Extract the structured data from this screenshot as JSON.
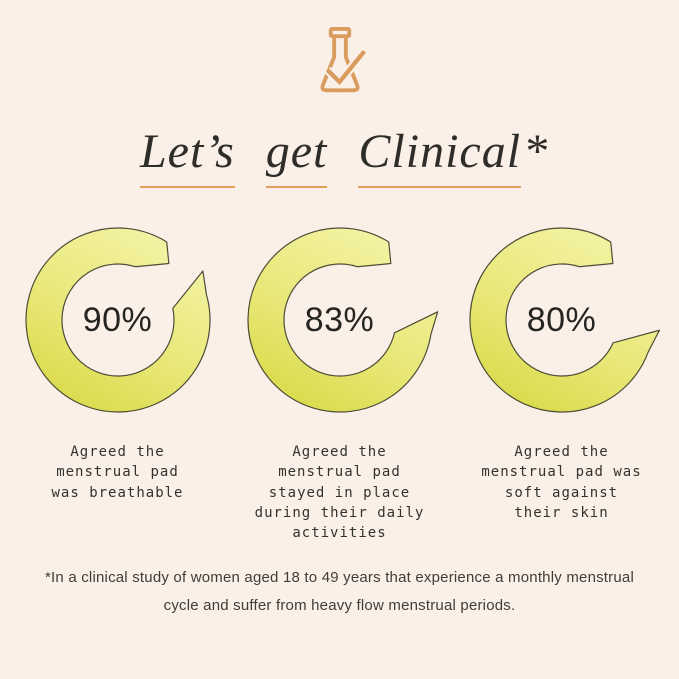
{
  "page": {
    "background_color": "#faf0e7",
    "accent_color": "#e2a05c",
    "text_color": "#2f2d2a"
  },
  "header": {
    "icon": "flask-check-icon",
    "title_words": [
      "Let’s",
      "get",
      "Clinical"
    ],
    "title_asterisk": "*"
  },
  "chart_data": {
    "type": "donut",
    "title": "Let’s get Clinical*",
    "legend": "none",
    "series": [
      {
        "value": 90,
        "label": "90%",
        "caption": "Agreed the menstrual pad was breathable",
        "caption_lines": [
          "Agreed the",
          "menstrual pad",
          "was breathable"
        ]
      },
      {
        "value": 83,
        "label": "83%",
        "caption": "Agreed the menstrual pad stayed in place during their daily activities",
        "caption_lines": [
          "Agreed the",
          "menstrual pad",
          "stayed in place",
          "during their daily",
          "activities"
        ]
      },
      {
        "value": 80,
        "label": "80%",
        "caption": "Agreed the menstrual pad was soft against their skin",
        "caption_lines": [
          "Agreed the",
          "menstrual pad was",
          "soft against",
          "their skin"
        ]
      }
    ],
    "ring_color_light": "#f4f3a6",
    "ring_color_mid": "#e8e776",
    "ring_color_dark": "#d8d945",
    "ring_outline": "#4e4d36"
  },
  "footnote": "*In a clinical study of women aged 18 to 49 years that experience a monthly menstrual cycle and suffer from heavy flow menstrual periods."
}
